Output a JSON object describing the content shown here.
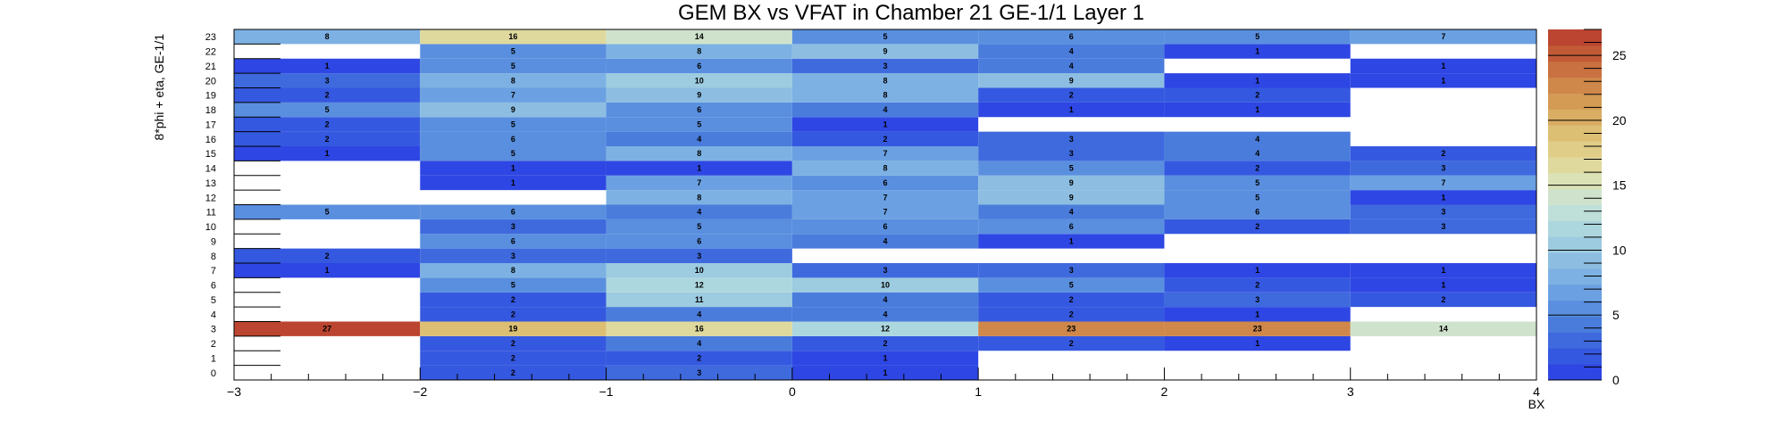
{
  "chart_data": {
    "type": "heatmap",
    "title": "GEM BX vs VFAT in Chamber 21 GE-1/1 Layer 1",
    "xlabel": "BX",
    "ylabel": "8*phi + eta, GE-1/1",
    "xlim": [
      -3,
      4
    ],
    "ylim": [
      0,
      24
    ],
    "zlim": [
      0,
      27
    ],
    "x_ticks": [
      "−3",
      "−2",
      "−1",
      "0",
      "1",
      "2",
      "3",
      "4"
    ],
    "z_ticks": [
      "0",
      "5",
      "10",
      "15",
      "20",
      "25"
    ],
    "y_categories": [
      "0",
      "1",
      "2",
      "3",
      "4",
      "5",
      "6",
      "7",
      "8",
      "9",
      "10",
      "11",
      "12",
      "13",
      "14",
      "15",
      "16",
      "17",
      "18",
      "19",
      "20",
      "21",
      "22",
      "23"
    ],
    "x_bins": [
      -3,
      -2,
      -1,
      0,
      1,
      2,
      3
    ],
    "bin_width": 1,
    "rows": [
      [
        null,
        2,
        3,
        1,
        null,
        null,
        null
      ],
      [
        null,
        2,
        2,
        1,
        null,
        null,
        null
      ],
      [
        null,
        2,
        4,
        2,
        2,
        1,
        null
      ],
      [
        27,
        19,
        16,
        12,
        23,
        23,
        14
      ],
      [
        null,
        2,
        4,
        4,
        2,
        1,
        null
      ],
      [
        null,
        2,
        11,
        4,
        2,
        3,
        2
      ],
      [
        null,
        5,
        12,
        10,
        5,
        2,
        1
      ],
      [
        1,
        8,
        10,
        3,
        3,
        1,
        1
      ],
      [
        2,
        3,
        3,
        null,
        null,
        null,
        null
      ],
      [
        null,
        6,
        6,
        4,
        1,
        null,
        null
      ],
      [
        null,
        3,
        5,
        6,
        6,
        2,
        3
      ],
      [
        5,
        6,
        4,
        7,
        4,
        6,
        3
      ],
      [
        null,
        null,
        8,
        7,
        9,
        5,
        1
      ],
      [
        null,
        1,
        7,
        6,
        9,
        5,
        7
      ],
      [
        null,
        1,
        1,
        8,
        5,
        2,
        3
      ],
      [
        1,
        5,
        8,
        7,
        3,
        4,
        2
      ],
      [
        2,
        6,
        4,
        2,
        3,
        4,
        null
      ],
      [
        2,
        5,
        5,
        1,
        null,
        null,
        null
      ],
      [
        5,
        9,
        6,
        4,
        1,
        1,
        null
      ],
      [
        2,
        7,
        9,
        8,
        2,
        2,
        null
      ],
      [
        3,
        8,
        10,
        8,
        9,
        1,
        1
      ],
      [
        1,
        5,
        6,
        3,
        4,
        null,
        1
      ],
      [
        null,
        5,
        8,
        9,
        4,
        1,
        null
      ],
      [
        8,
        16,
        14,
        5,
        6,
        5,
        7
      ]
    ],
    "palette": [
      "#2e46e3",
      "#3558e0",
      "#3f6ade",
      "#4a7cdc",
      "#5a8fdf",
      "#6ba1e2",
      "#7db1e3",
      "#8dbee2",
      "#9dcbe0",
      "#add7de",
      "#bfdfd9",
      "#cfe3cc",
      "#dbe2b6",
      "#e0d99e",
      "#e0cd88",
      "#ddbf74",
      "#d9ad63",
      "#d49b55",
      "#cf874a",
      "#c97140",
      "#c25a37",
      "#bb4530"
    ]
  }
}
